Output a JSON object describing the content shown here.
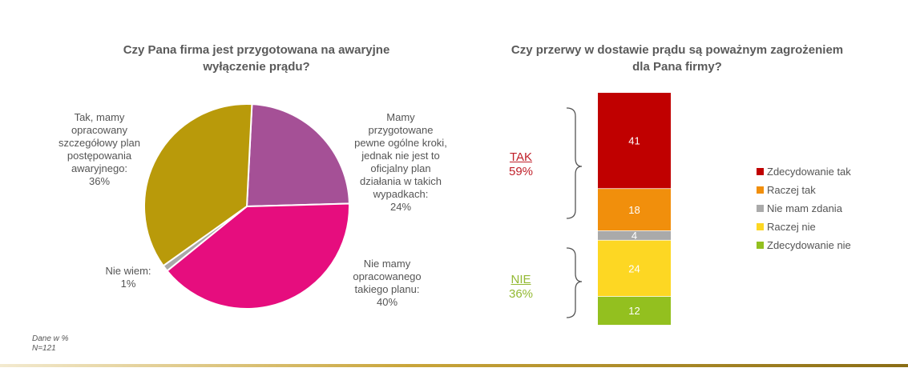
{
  "left_chart": {
    "title_line1": "Czy Pana firma jest przygotowana na awaryjne",
    "title_line2": "wyłączenie prądu?",
    "labels": {
      "tak_plan": [
        "Tak, mamy",
        "opracowany",
        "szczegółowy plan",
        "postępowania",
        "awaryjnego:",
        "36%"
      ],
      "ogolne": [
        "Mamy",
        "przygotowane",
        "pewne ogólne kroki,",
        "jednak nie jest to",
        "oficjalny plan",
        "działania w takich",
        "wypadkach:",
        "24%"
      ],
      "nie_plan": [
        "Nie mamy",
        "opracowanego",
        "takiego planu:",
        "40%"
      ],
      "nie_wiem": [
        "Nie wiem:",
        "1%"
      ]
    }
  },
  "right_chart": {
    "title_line1": "Czy przerwy w dostawie prądu są poważnym zagrożeniem",
    "title_line2": "dla Pana firmy?",
    "tak_label": "TAK",
    "tak_pct": "59%",
    "nie_label": "NIE",
    "nie_pct": "36%",
    "legend": [
      "Zdecydowanie tak",
      "Raczej tak",
      "Nie mam zdania",
      "Raczej nie",
      "Zdecydowanie nie"
    ]
  },
  "notes": {
    "line1": "Dane w %",
    "line2": "N=121"
  },
  "colors": {
    "tak_plan": "#b99a0a",
    "ogolne": "#a55096",
    "nie_plan": "#e60d7e",
    "nie_wiem": "#a9a9a9",
    "zdecydowanie_tak": "#c00000",
    "raczej_tak": "#f18f0c",
    "nie_mam_zdania": "#aaaaaa",
    "raczej_nie": "#fdd723",
    "zdecydowanie_nie": "#93c01f",
    "tak_text": "#c0202a",
    "nie_text": "#93b932"
  },
  "chart_data": [
    {
      "type": "pie",
      "title": "Czy Pana firma jest przygotowana na awaryjne wyłączenie prądu?",
      "categories": [
        "Mamy przygotowane pewne ogólne kroki, jednak nie jest to oficjalny plan działania w takich wypadkach",
        "Nie mamy opracowanego takiego planu",
        "Nie wiem",
        "Tak, mamy opracowany szczegółowy plan postępowania awaryjnego"
      ],
      "values": [
        24,
        40,
        1,
        36
      ],
      "color_keys": [
        "ogolne",
        "nie_plan",
        "nie_wiem",
        "tak_plan"
      ]
    },
    {
      "type": "bar",
      "stacked": true,
      "title": "Czy przerwy w dostawie prądu są poważnym zagrożeniem dla Pana firmy?",
      "categories": [
        "Zdecydowanie tak",
        "Raczej tak",
        "Nie mam zdania",
        "Raczej nie",
        "Zdecydowanie nie"
      ],
      "values": [
        41,
        18,
        4,
        24,
        12
      ],
      "color_keys": [
        "zdecydowanie_tak",
        "raczej_tak",
        "nie_mam_zdania",
        "raczej_nie",
        "zdecydowanie_nie"
      ],
      "groups": {
        "TAK": "59%",
        "NIE": "36%"
      }
    }
  ]
}
